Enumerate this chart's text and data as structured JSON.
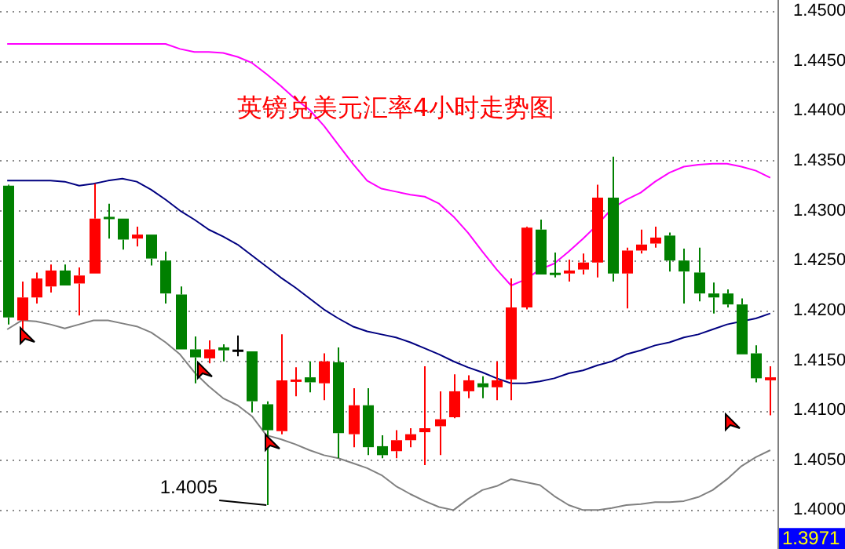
{
  "chart_data": {
    "type": "candlestick",
    "title": "英镑兑美元汇率4小时走势图",
    "categories": [
      null,
      null,
      null,
      null,
      null,
      null,
      null,
      null,
      null,
      null,
      null,
      null,
      null,
      null,
      null,
      null,
      null,
      null,
      null,
      null,
      null,
      null,
      null,
      null,
      null,
      null,
      null,
      null,
      null,
      null,
      null,
      null,
      null,
      null,
      null,
      null,
      null,
      null,
      null,
      null,
      null,
      null,
      null,
      null,
      null,
      null,
      null,
      null,
      null,
      null,
      null,
      null,
      null,
      null
    ],
    "ohlc": [
      [
        1.4325,
        1.4326,
        1.4186,
        1.4193
      ],
      [
        1.419,
        1.4229,
        1.4175,
        1.4213
      ],
      [
        1.4213,
        1.4238,
        1.4207,
        1.4232
      ],
      [
        1.4224,
        1.4246,
        1.4218,
        1.424
      ],
      [
        1.424,
        1.4246,
        1.4225,
        1.4225
      ],
      [
        1.4227,
        1.4243,
        1.4195,
        1.4235
      ],
      [
        1.4237,
        1.4327,
        1.4237,
        1.4292
      ],
      [
        1.4293,
        1.4307,
        1.4272,
        1.4292
      ],
      [
        1.4292,
        1.4292,
        1.4261,
        1.4271
      ],
      [
        1.4272,
        1.4284,
        1.4264,
        1.4276
      ],
      [
        1.4276,
        1.4276,
        1.4245,
        1.4252
      ],
      [
        1.425,
        1.4259,
        1.4207,
        1.4217
      ],
      [
        1.4216,
        1.4224,
        1.4161,
        1.4161
      ],
      [
        1.4161,
        1.4174,
        1.4127,
        1.4153
      ],
      [
        1.4152,
        1.417,
        1.4147,
        1.4161
      ],
      [
        1.4163,
        1.4166,
        1.4149,
        1.416
      ],
      [
        1.416,
        1.4175,
        1.4154,
        1.416
      ],
      [
        1.4159,
        1.4159,
        1.4098,
        1.4109
      ],
      [
        1.4106,
        1.4109,
        1.4005,
        1.408
      ],
      [
        1.4079,
        1.4176,
        1.4076,
        1.413
      ],
      [
        1.4129,
        1.4143,
        1.4114,
        1.413
      ],
      [
        1.4133,
        1.4149,
        1.4118,
        1.4128
      ],
      [
        1.4127,
        1.4157,
        1.411,
        1.4149
      ],
      [
        1.4148,
        1.4163,
        1.4052,
        1.4077
      ],
      [
        1.4076,
        1.4122,
        1.4063,
        1.4105
      ],
      [
        1.4105,
        1.4122,
        1.4055,
        1.4063
      ],
      [
        1.4064,
        1.4075,
        1.4052,
        1.4055
      ],
      [
        1.4059,
        1.408,
        1.4052,
        1.407
      ],
      [
        1.407,
        1.4082,
        1.4063,
        1.4076
      ],
      [
        1.4078,
        1.4144,
        1.4045,
        1.4082
      ],
      [
        1.4084,
        1.4119,
        1.4055,
        1.4091
      ],
      [
        1.4093,
        1.4136,
        1.4092,
        1.4119
      ],
      [
        1.4119,
        1.4135,
        1.4112,
        1.413
      ],
      [
        1.4127,
        1.4134,
        1.4112,
        1.4123
      ],
      [
        1.4123,
        1.4149,
        1.411,
        1.413
      ],
      [
        1.4131,
        1.4232,
        1.411,
        1.4203
      ],
      [
        1.4203,
        1.4284,
        1.4201,
        1.4283
      ],
      [
        1.4281,
        1.4291,
        1.4236,
        1.4236
      ],
      [
        1.4237,
        1.4258,
        1.4233,
        1.4236
      ],
      [
        1.4237,
        1.4251,
        1.4229,
        1.424
      ],
      [
        1.4241,
        1.4257,
        1.4236,
        1.4248
      ],
      [
        1.4248,
        1.4326,
        1.4233,
        1.4313
      ],
      [
        1.4313,
        1.4354,
        1.4229,
        1.4237
      ],
      [
        1.4237,
        1.4263,
        1.4202,
        1.426
      ],
      [
        1.426,
        1.4281,
        1.4257,
        1.4266
      ],
      [
        1.4267,
        1.4284,
        1.4263,
        1.4273
      ],
      [
        1.4275,
        1.4278,
        1.4239,
        1.425
      ],
      [
        1.425,
        1.4262,
        1.4207,
        1.4239
      ],
      [
        1.4238,
        1.4263,
        1.4209,
        1.4217
      ],
      [
        1.4217,
        1.4228,
        1.4197,
        1.4213
      ],
      [
        1.4217,
        1.4221,
        1.4203,
        1.4206
      ],
      [
        1.4206,
        1.4212,
        1.4156,
        1.4156
      ],
      [
        1.4157,
        1.4165,
        1.4128,
        1.4132
      ],
      [
        1.413,
        1.4144,
        1.4095,
        1.4133
      ]
    ],
    "colors": [
      "#008000",
      "#ff0000",
      "#ff0000",
      "#ff0000",
      "#008000",
      "#ff0000",
      "#ff0000",
      "#008000",
      "#008000",
      "#ff0000",
      "#008000",
      "#008000",
      "#008000",
      "#008000",
      "#ff0000",
      "#008000",
      "#000000",
      "#008000",
      "#008000",
      "#ff0000",
      "#ff0000",
      "#008000",
      "#ff0000",
      "#008000",
      "#ff0000",
      "#008000",
      "#008000",
      "#ff0000",
      "#ff0000",
      "#ff0000",
      "#ff0000",
      "#ff0000",
      "#ff0000",
      "#008000",
      "#ff0000",
      "#ff0000",
      "#ff0000",
      "#008000",
      "#008000",
      "#ff0000",
      "#ff0000",
      "#ff0000",
      "#008000",
      "#ff0000",
      "#ff0000",
      "#ff0000",
      "#008000",
      "#008000",
      "#008000",
      "#008000",
      "#008000",
      "#008000",
      "#008000",
      "#ff0000"
    ],
    "series": [
      {
        "type": "line",
        "color": "#ff00ff",
        "values": [
          1.4467,
          1.4467,
          1.4467,
          1.4467,
          1.4467,
          1.4467,
          1.4467,
          1.4467,
          1.4467,
          1.4467,
          1.4467,
          1.4467,
          1.4462,
          1.4459,
          1.4459,
          1.4458,
          1.4454,
          1.4448,
          1.4437,
          1.4425,
          1.4412,
          1.4401,
          1.4385,
          1.4366,
          1.4347,
          1.433,
          1.4322,
          1.4319,
          1.4316,
          1.4314,
          1.4307,
          1.4294,
          1.4278,
          1.4259,
          1.4241,
          1.4225,
          1.4231,
          1.4241,
          1.4247,
          1.4259,
          1.4272,
          1.4286,
          1.4302,
          1.4311,
          1.4318,
          1.4329,
          1.4338,
          1.4344,
          1.4346,
          1.4347,
          1.4347,
          1.4344,
          1.434,
          1.4333
        ]
      },
      {
        "type": "line",
        "color": "#000080",
        "values": [
          1.433,
          1.433,
          1.433,
          1.433,
          1.4329,
          1.4325,
          1.4327,
          1.433,
          1.4332,
          1.4329,
          1.4321,
          1.4311,
          1.43,
          1.4291,
          1.4281,
          1.4274,
          1.4266,
          1.4255,
          1.4244,
          1.4233,
          1.4223,
          1.4212,
          1.4201,
          1.4192,
          1.4184,
          1.4179,
          1.4176,
          1.4173,
          1.4168,
          1.4162,
          1.4156,
          1.4149,
          1.4143,
          1.4138,
          1.4132,
          1.4127,
          1.4127,
          1.4129,
          1.4132,
          1.4137,
          1.414,
          1.4145,
          1.4149,
          1.4156,
          1.416,
          1.4165,
          1.4168,
          1.4173,
          1.4176,
          1.4181,
          1.4186,
          1.4189,
          1.4192,
          1.4197
        ]
      },
      {
        "type": "line",
        "color": "#808080",
        "values": [
          1.4181,
          1.419,
          1.4189,
          1.4186,
          1.4182,
          1.4186,
          1.419,
          1.419,
          1.4187,
          1.4184,
          1.4178,
          1.4168,
          1.4156,
          1.4138,
          1.4124,
          1.4112,
          1.4105,
          1.4094,
          1.4075,
          1.4071,
          1.4066,
          1.406,
          1.4055,
          1.4052,
          1.4047,
          1.4042,
          1.4035,
          1.4024,
          1.4016,
          1.4009,
          1.4003,
          1.4,
          1.4011,
          1.402,
          1.4024,
          1.4031,
          1.4028,
          1.4025,
          1.4014,
          1.4005,
          1.4,
          1.4,
          1.4002,
          1.4005,
          1.4006,
          1.4008,
          1.4008,
          1.4009,
          1.4013,
          1.402,
          1.4031,
          1.4044,
          1.4053,
          1.406
        ]
      }
    ],
    "ylim": [
      1.3961,
      1.4511
    ],
    "yticks": [
      {
        "value": 1.4,
        "label": "1.4000"
      },
      {
        "value": 1.405,
        "label": "1.4050"
      },
      {
        "value": 1.41,
        "label": "1.4100"
      },
      {
        "value": 1.415,
        "label": "1.4150"
      },
      {
        "value": 1.42,
        "label": "1.4200"
      },
      {
        "value": 1.425,
        "label": "1.4250"
      },
      {
        "value": 1.43,
        "label": "1.4300"
      },
      {
        "value": 1.435,
        "label": "1.4350"
      },
      {
        "value": 1.44,
        "label": "1.4400"
      },
      {
        "value": 1.445,
        "label": "1.4450"
      },
      {
        "value": 1.45,
        "label": "1.4500"
      }
    ],
    "annotations": [
      "1.4005",
      {
        "text": "1.3971",
        "y": 1.3971
      }
    ],
    "grid": "y",
    "tick_labels": "y",
    "legend": false
  }
}
